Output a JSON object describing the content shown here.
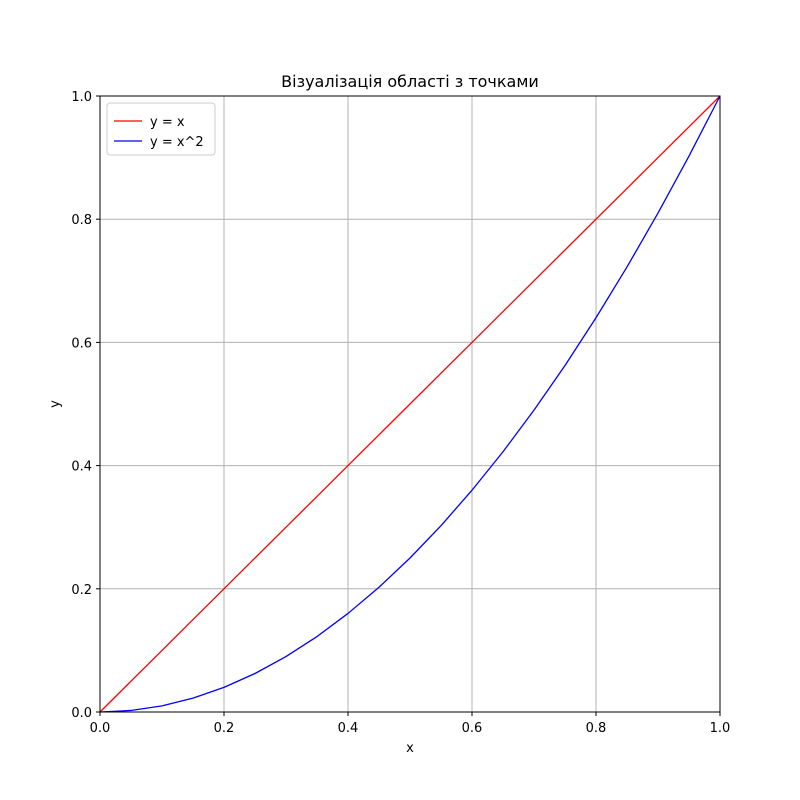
{
  "chart_data": {
    "type": "line",
    "title": "Візуалізація області з точками",
    "xlabel": "x",
    "ylabel": "y",
    "xlim": [
      0,
      1
    ],
    "ylim": [
      0,
      1
    ],
    "xticks": [
      "0.0",
      "0.2",
      "0.4",
      "0.6",
      "0.8",
      "1.0"
    ],
    "yticks": [
      "0.0",
      "0.2",
      "0.4",
      "0.6",
      "0.8",
      "1.0"
    ],
    "grid": true,
    "legend_position": "top-left",
    "series": [
      {
        "name": "y = x",
        "color": "#ff0000",
        "x": [
          0,
          0.05,
          0.1,
          0.15,
          0.2,
          0.25,
          0.3,
          0.35,
          0.4,
          0.45,
          0.5,
          0.55,
          0.6,
          0.65,
          0.7,
          0.75,
          0.8,
          0.85,
          0.9,
          0.95,
          1.0
        ],
        "y": [
          0,
          0.05,
          0.1,
          0.15,
          0.2,
          0.25,
          0.3,
          0.35,
          0.4,
          0.45,
          0.5,
          0.55,
          0.6,
          0.65,
          0.7,
          0.75,
          0.8,
          0.85,
          0.9,
          0.95,
          1.0
        ]
      },
      {
        "name": "y = x^2",
        "color": "#0000ff",
        "x": [
          0,
          0.05,
          0.1,
          0.15,
          0.2,
          0.25,
          0.3,
          0.35,
          0.4,
          0.45,
          0.5,
          0.55,
          0.6,
          0.65,
          0.7,
          0.75,
          0.8,
          0.85,
          0.9,
          0.95,
          1.0
        ],
        "y": [
          0,
          0.0025,
          0.01,
          0.0225,
          0.04,
          0.0625,
          0.09,
          0.1225,
          0.16,
          0.2025,
          0.25,
          0.3025,
          0.36,
          0.4225,
          0.49,
          0.5625,
          0.64,
          0.7225,
          0.81,
          0.9025,
          1.0
        ]
      }
    ]
  }
}
